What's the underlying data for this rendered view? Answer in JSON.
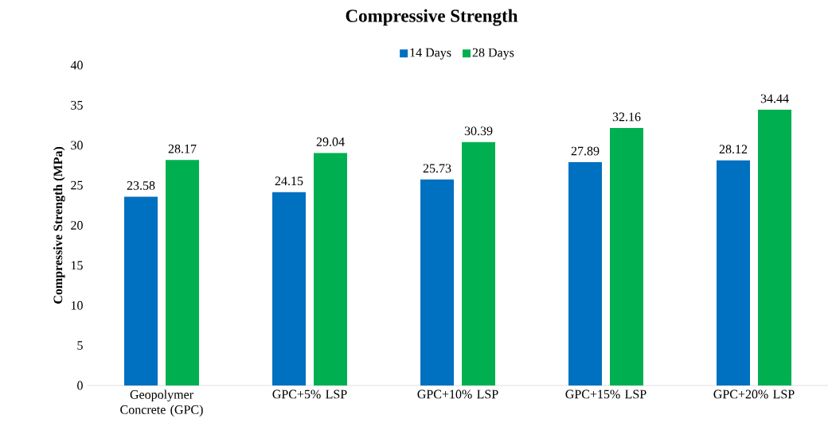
{
  "chart_data": {
    "type": "bar",
    "title": "Compressive Strength",
    "ylabel": "Compressive Strength (MPa)",
    "categories": [
      "Geopolymer Concrete (GPC)",
      "GPC+5% LSP",
      "GPC+10% LSP",
      "GPC+15% LSP",
      "GPC+20% LSP"
    ],
    "series": [
      {
        "name": "14 Days",
        "color": "#0070c0",
        "values": [
          23.58,
          24.15,
          25.73,
          27.89,
          28.12
        ]
      },
      {
        "name": "28 Days",
        "color": "#00b050",
        "values": [
          28.17,
          29.04,
          30.39,
          32.16,
          34.44
        ]
      }
    ],
    "ylim": [
      0,
      40
    ],
    "yticks": [
      0,
      5,
      10,
      15,
      20,
      25,
      30,
      35,
      40
    ],
    "data_labels": true,
    "legend": "top"
  }
}
